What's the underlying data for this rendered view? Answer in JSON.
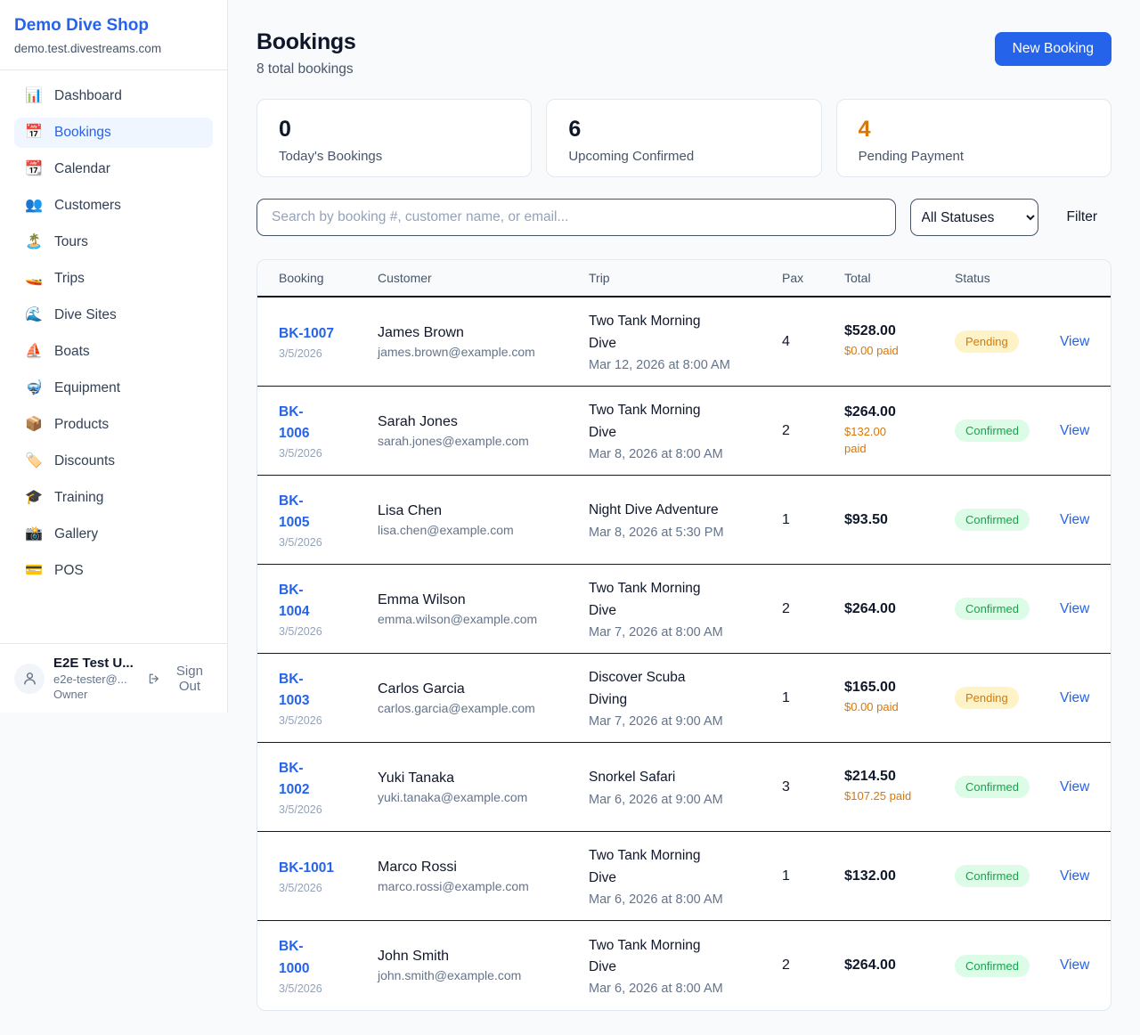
{
  "sidebar": {
    "brand": {
      "name": "Demo Dive Shop",
      "domain": "demo.test.divestreams.com"
    },
    "nav": [
      {
        "label": "Dashboard",
        "icon": "bar-chart-icon",
        "glyph": "📊",
        "active": false
      },
      {
        "label": "Bookings",
        "icon": "calendar-icon",
        "glyph": "📅",
        "active": true
      },
      {
        "label": "Calendar",
        "icon": "tear-off-calendar-icon",
        "glyph": "📆",
        "active": false
      },
      {
        "label": "Customers",
        "icon": "people-icon",
        "glyph": "👥",
        "active": false
      },
      {
        "label": "Tours",
        "icon": "island-icon",
        "glyph": "🏝️",
        "active": false
      },
      {
        "label": "Trips",
        "icon": "speedboat-icon",
        "glyph": "🚤",
        "active": false
      },
      {
        "label": "Dive Sites",
        "icon": "wave-icon",
        "glyph": "🌊",
        "active": false
      },
      {
        "label": "Boats",
        "icon": "sailboat-icon",
        "glyph": "⛵",
        "active": false
      },
      {
        "label": "Equipment",
        "icon": "diving-mask-icon",
        "glyph": "🤿",
        "active": false
      },
      {
        "label": "Products",
        "icon": "package-icon",
        "glyph": "📦",
        "active": false
      },
      {
        "label": "Discounts",
        "icon": "label-tag-icon",
        "glyph": "🏷️",
        "active": false
      },
      {
        "label": "Training",
        "icon": "graduation-cap-icon",
        "glyph": "🎓",
        "active": false
      },
      {
        "label": "Gallery",
        "icon": "camera-flash-icon",
        "glyph": "📸",
        "active": false
      },
      {
        "label": "POS",
        "icon": "credit-card-icon",
        "glyph": "💳",
        "active": false
      }
    ],
    "user": {
      "name": "E2E Test U...",
      "email": "e2e-tester@...",
      "role": "Owner",
      "sign_out_label": "Sign Out"
    }
  },
  "header": {
    "title": "Bookings",
    "subtitle": "8 total bookings",
    "new_booking_label": "New Booking"
  },
  "stats": [
    {
      "value": "0",
      "label": "Today's Bookings",
      "value_color": "#0f172a"
    },
    {
      "value": "6",
      "label": "Upcoming Confirmed",
      "value_color": "#0f172a"
    },
    {
      "value": "4",
      "label": "Pending Payment",
      "value_color": "#d97706"
    }
  ],
  "filters": {
    "search_placeholder": "Search by booking #, customer name, or email...",
    "status_selected": "All Statuses",
    "filter_label": "Filter"
  },
  "table": {
    "columns": [
      "Booking",
      "Customer",
      "Trip",
      "Pax",
      "Total",
      "Status",
      ""
    ],
    "view_label": "View",
    "rows": [
      {
        "id": "BK-1007",
        "date": "3/5/2026",
        "customer": "James Brown",
        "email": "james.brown@example.com",
        "trip": "Two Tank Morning\nDive",
        "trip_time": "Mar 12, 2026 at 8:00 AM",
        "pax": "4",
        "total": "$528.00",
        "paid": "$0.00 paid",
        "status": "Pending"
      },
      {
        "id": "BK-\n1006",
        "date": "3/5/2026",
        "customer": "Sarah Jones",
        "email": "sarah.jones@example.com",
        "trip": "Two Tank Morning\nDive",
        "trip_time": "Mar 8, 2026 at 8:00 AM",
        "pax": "2",
        "total": "$264.00",
        "paid": "$132.00\npaid",
        "status": "Confirmed"
      },
      {
        "id": "BK-\n1005",
        "date": "3/5/2026",
        "customer": "Lisa Chen",
        "email": "lisa.chen@example.com",
        "trip": "Night Dive Adventure",
        "trip_time": "Mar 8, 2026 at 5:30 PM",
        "pax": "1",
        "total": "$93.50",
        "paid": "",
        "status": "Confirmed"
      },
      {
        "id": "BK-\n1004",
        "date": "3/5/2026",
        "customer": "Emma Wilson",
        "email": "emma.wilson@example.com",
        "trip": "Two Tank Morning\nDive",
        "trip_time": "Mar 7, 2026 at 8:00 AM",
        "pax": "2",
        "total": "$264.00",
        "paid": "",
        "status": "Confirmed"
      },
      {
        "id": "BK-\n1003",
        "date": "3/5/2026",
        "customer": "Carlos Garcia",
        "email": "carlos.garcia@example.com",
        "trip": "Discover Scuba\nDiving",
        "trip_time": "Mar 7, 2026 at 9:00 AM",
        "pax": "1",
        "total": "$165.00",
        "paid": "$0.00 paid",
        "status": "Pending"
      },
      {
        "id": "BK-\n1002",
        "date": "3/5/2026",
        "customer": "Yuki Tanaka",
        "email": "yuki.tanaka@example.com",
        "trip": "Snorkel Safari",
        "trip_time": "Mar 6, 2026 at 9:00 AM",
        "pax": "3",
        "total": "$214.50",
        "paid": "$107.25 paid",
        "status": "Confirmed"
      },
      {
        "id": "BK-1001",
        "date": "3/5/2026",
        "customer": "Marco Rossi",
        "email": "marco.rossi@example.com",
        "trip": "Two Tank Morning\nDive",
        "trip_time": "Mar 6, 2026 at 8:00 AM",
        "pax": "1",
        "total": "$132.00",
        "paid": "",
        "status": "Confirmed"
      },
      {
        "id": "BK-\n1000",
        "date": "3/5/2026",
        "customer": "John Smith",
        "email": "john.smith@example.com",
        "trip": "Two Tank Morning\nDive",
        "trip_time": "Mar 6, 2026 at 8:00 AM",
        "pax": "2",
        "total": "$264.00",
        "paid": "",
        "status": "Confirmed"
      }
    ]
  },
  "colors": {
    "accent_blue": "#2563eb",
    "pending_text": "#d97706",
    "pending_bg": "#fef3c7",
    "confirmed_text": "#16a34a",
    "confirmed_bg": "#dcfce7",
    "page_bg": "#f8fafc"
  }
}
